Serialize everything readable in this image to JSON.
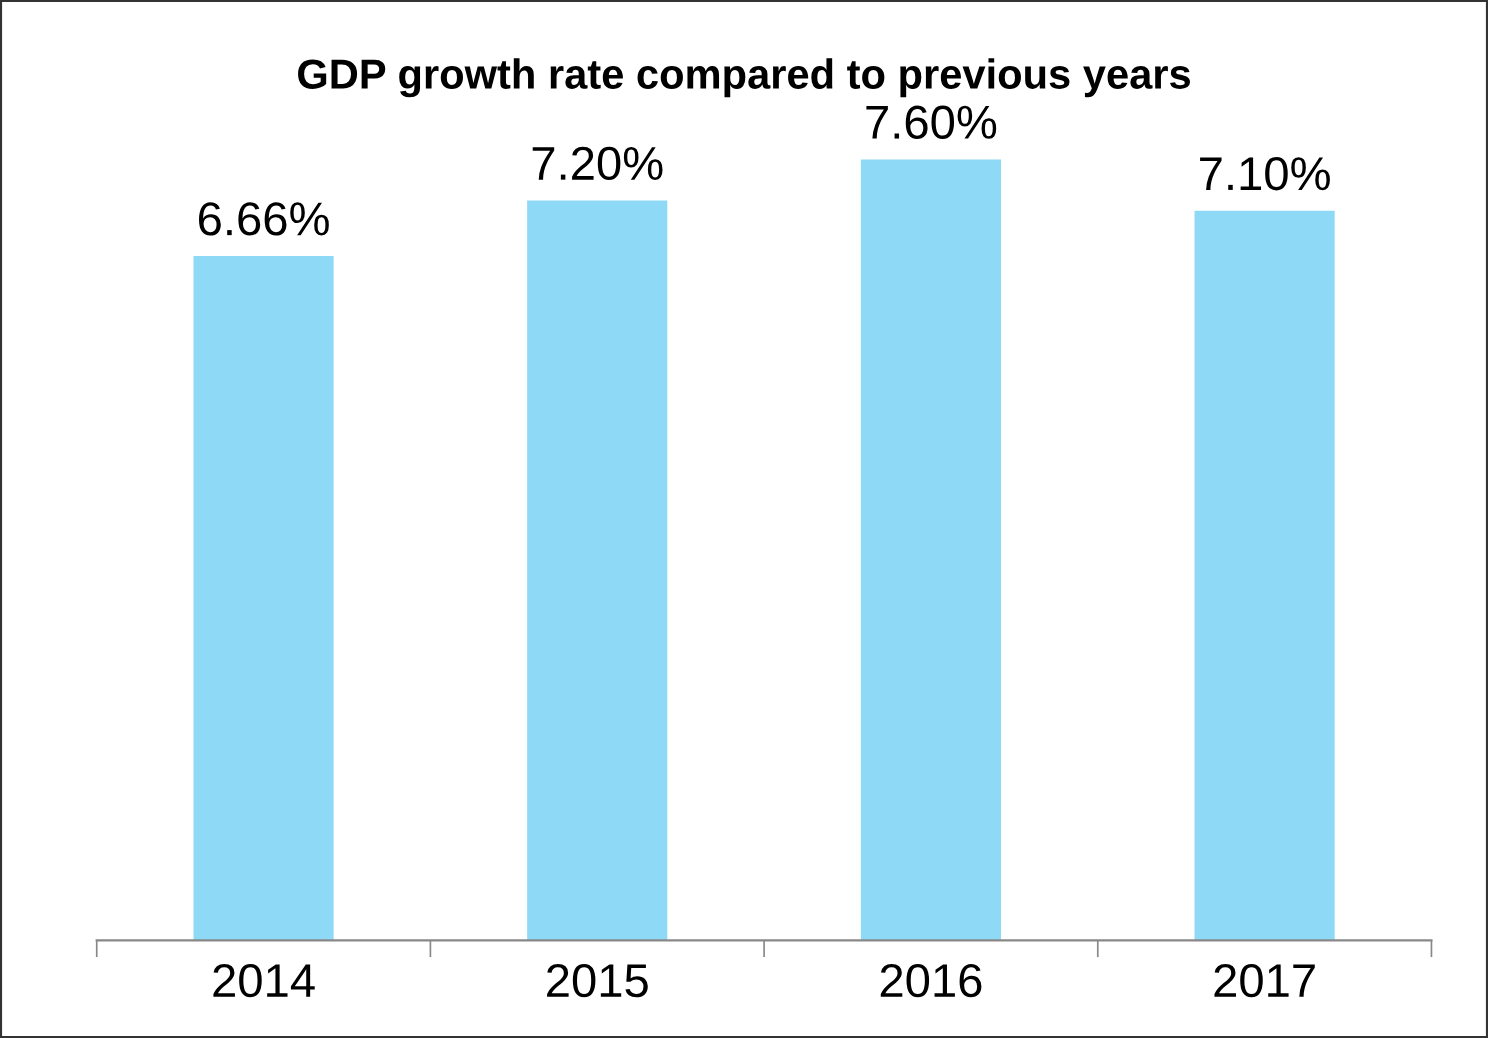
{
  "chart_data": {
    "type": "bar",
    "title": "GDP growth rate compared to previous years",
    "categories": [
      "2014",
      "2015",
      "2016",
      "2017"
    ],
    "values": [
      6.66,
      7.2,
      7.6,
      7.1
    ],
    "value_labels": [
      "6.66%",
      "7.20%",
      "7.60%",
      "7.10%"
    ],
    "color": "#8ed9f6",
    "tick_labels": "x",
    "grid": false,
    "legend": false
  }
}
